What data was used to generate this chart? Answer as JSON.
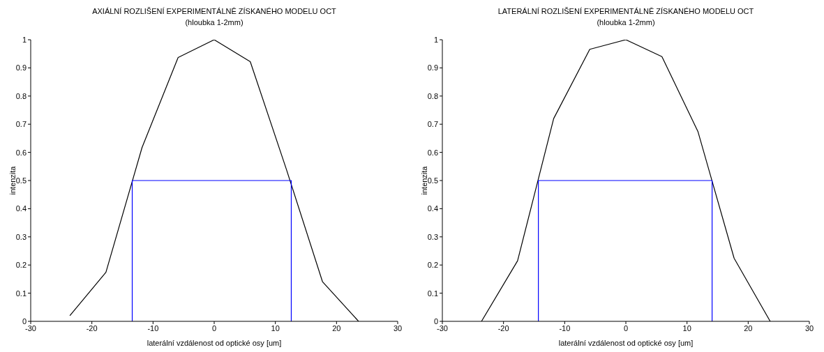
{
  "chart_data": [
    {
      "type": "line",
      "title": "AXIÁLNÍ ROZLIŠENÍ EXPERIMENTÁLNĚ ZÍSKANÉHO MODELU OCT",
      "subtitle": "(hloubka 1-2mm)",
      "xlabel": "laterální vzdálenost od optické osy [um]",
      "ylabel": "intenzita",
      "xlim": [
        -30,
        30
      ],
      "ylim": [
        0,
        1
      ],
      "xticks": [
        -30,
        -20,
        -10,
        0,
        10,
        20,
        30
      ],
      "yticks": [
        0,
        0.1,
        0.2,
        0.3,
        0.4,
        0.5,
        0.6,
        0.7,
        0.8,
        0.9,
        1
      ],
      "marker": "none",
      "line_style": "solid",
      "series": [
        {
          "color": "#000000",
          "x": [
            -23.6,
            -17.7,
            -11.8,
            -5.9,
            0,
            5.9,
            11.8,
            17.7,
            23.6
          ],
          "values": [
            0.02,
            0.174,
            0.617,
            0.937,
            1,
            0.922,
            0.54,
            0.141,
            0
          ]
        },
        {
          "color": "#0000ff",
          "x": [
            -13.4,
            -13.4,
            12.6,
            12.6
          ],
          "values": [
            0,
            0.5,
            0.5,
            0
          ]
        }
      ]
    },
    {
      "type": "line",
      "title": "LATERÁLNÍ ROZLIŠENÍ EXPERIMENTÁLNĚ ZÍSKANÉHO MODELU OCT",
      "subtitle": "(hloubka 1-2mm)",
      "xlabel": "laterální vzdálenost od optické osy [um]",
      "ylabel": "intenzita",
      "xlim": [
        -30,
        30
      ],
      "ylim": [
        0,
        1
      ],
      "xticks": [
        -30,
        -20,
        -10,
        0,
        10,
        20,
        30
      ],
      "yticks": [
        0,
        0.1,
        0.2,
        0.3,
        0.4,
        0.5,
        0.6,
        0.7,
        0.8,
        0.9,
        1
      ],
      "marker": "none",
      "line_style": "solid",
      "series": [
        {
          "color": "#000000",
          "x": [
            -23.6,
            -17.7,
            -11.8,
            -5.9,
            0,
            5.9,
            11.8,
            17.7,
            23.6
          ],
          "values": [
            0,
            0.215,
            0.72,
            0.966,
            1,
            0.94,
            0.673,
            0.224,
            0
          ]
        },
        {
          "color": "#0000ff",
          "x": [
            -14.3,
            -14.3,
            14.1,
            14.1
          ],
          "values": [
            0,
            0.5,
            0.5,
            0
          ]
        }
      ]
    }
  ]
}
